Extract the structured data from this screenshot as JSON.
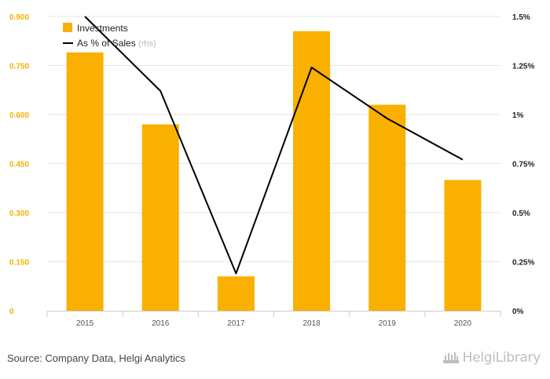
{
  "chart_data": {
    "type": "bar",
    "categories": [
      "2015",
      "2016",
      "2017",
      "2018",
      "2019",
      "2020"
    ],
    "series": [
      {
        "name": "Investments",
        "type": "bar",
        "axis": "left",
        "color": "#f9b000",
        "values": [
          0.79,
          0.57,
          0.105,
          0.855,
          0.63,
          0.4
        ]
      },
      {
        "name": "As % of Sales",
        "type": "line",
        "axis": "right",
        "color": "#000000",
        "values": [
          1.5,
          1.12,
          0.19,
          1.24,
          0.98,
          0.77
        ]
      }
    ],
    "left_axis": {
      "ticks": [
        "0",
        "0.150",
        "0.300",
        "0.450",
        "0.600",
        "0.750",
        "0.900"
      ],
      "tick_values": [
        0,
        0.15,
        0.3,
        0.45,
        0.6,
        0.75,
        0.9
      ],
      "ylim": [
        0,
        0.9
      ],
      "tick_color": "#f9b000"
    },
    "right_axis": {
      "ticks": [
        "0%",
        "0.25%",
        "0.5%",
        "0.75%",
        "1%",
        "1.25%",
        "1.5%"
      ],
      "tick_values": [
        0,
        0.25,
        0.5,
        0.75,
        1,
        1.25,
        1.5
      ],
      "ylim": [
        0,
        1.5
      ]
    },
    "legend": {
      "position": "top-left",
      "items": [
        {
          "label": "Investments",
          "suffix": ""
        },
        {
          "label": "As % of Sales",
          "suffix": "(rhs)"
        }
      ]
    },
    "grid": true
  },
  "footer": {
    "source": "Source: Company Data, Helgi Analytics",
    "watermark": "HelgiLibrary"
  }
}
